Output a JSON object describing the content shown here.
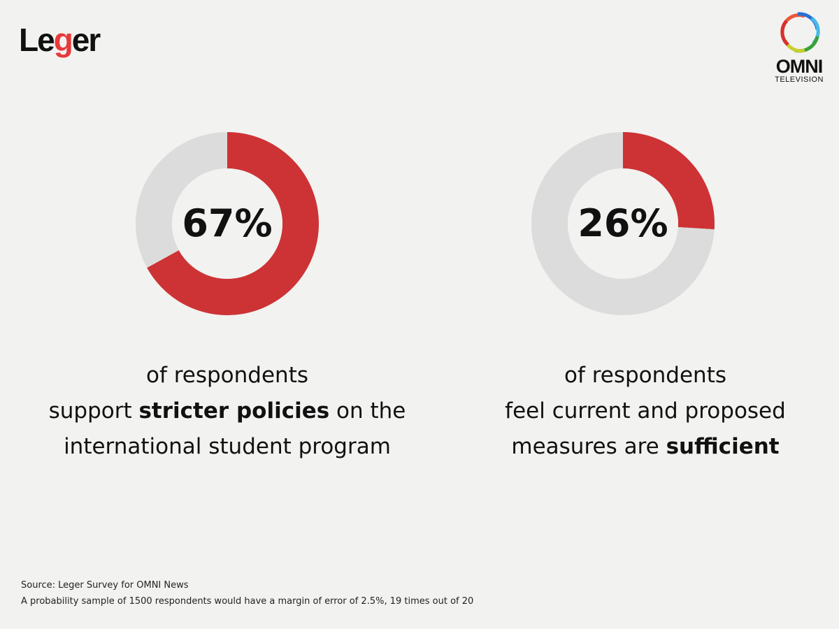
{
  "logos": {
    "leger": "Leger",
    "omni": "OMNI",
    "omni_sub": "TELEVISION"
  },
  "colors": {
    "accent": "#cd3335",
    "track": "#dcdcdc",
    "background": "#f2f2f0"
  },
  "chart_data": [
    {
      "type": "pie",
      "variant": "donut",
      "label": "67%",
      "values": [
        67,
        33
      ],
      "categories": [
        "Support stricter policies",
        "Other"
      ],
      "description": {
        "line1": "of respondents",
        "line2_pre": "support ",
        "line2_bold": "stricter policies",
        "line2_post": " on the",
        "line3": "international student program"
      }
    },
    {
      "type": "pie",
      "variant": "donut",
      "label": "26%",
      "values": [
        26,
        74
      ],
      "categories": [
        "Measures are sufficient",
        "Other"
      ],
      "description": {
        "line1": "of respondents",
        "line2": "feel current and proposed",
        "line3_pre": "measures are ",
        "line3_bold": "sufficient"
      }
    }
  ],
  "footer": {
    "source": "Source: Leger Survey for OMNI News",
    "note": "A probability sample of 1500 respondents would have a margin of error of 2.5%, 19 times out of 20"
  }
}
